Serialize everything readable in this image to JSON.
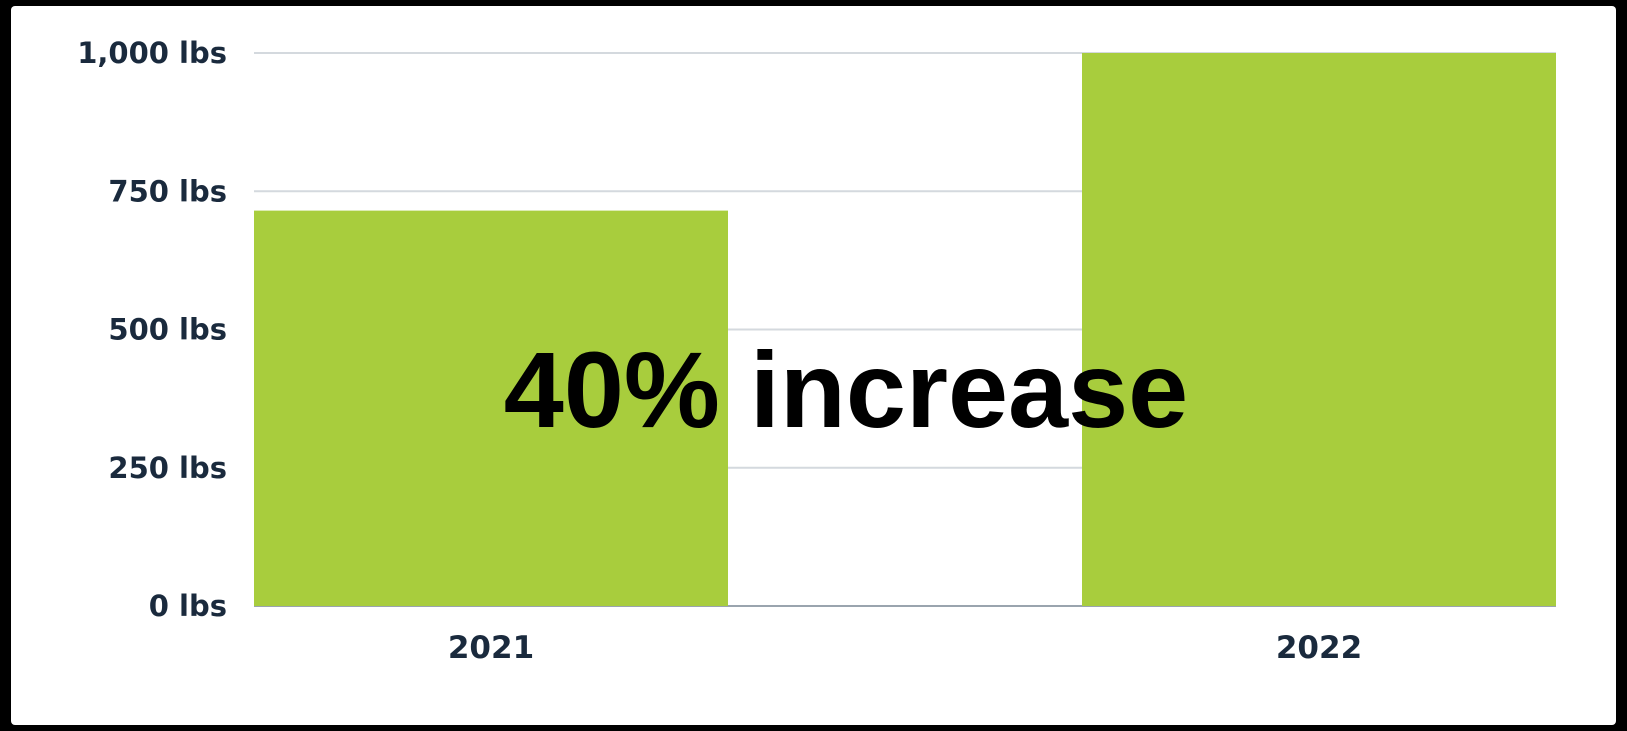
{
  "chart_data": {
    "type": "bar",
    "title": "",
    "xlabel": "",
    "ylabel": "",
    "categories": [
      "2021",
      "2022"
    ],
    "values": [
      715,
      1000
    ],
    "ylim": [
      0,
      1000
    ],
    "yticks": [
      0,
      250,
      500,
      750,
      1000
    ],
    "ytick_labels": [
      "0 lbs",
      "250 lbs",
      "500 lbs",
      "750 lbs",
      "1,000 lbs"
    ],
    "grid": true,
    "legend": "none",
    "annotation": "40% increase",
    "colors": {
      "bar": "#a8cd3d",
      "gridline": "#d4d9de",
      "axis_text": "#1a2a3d",
      "annotation": "#000000"
    }
  }
}
